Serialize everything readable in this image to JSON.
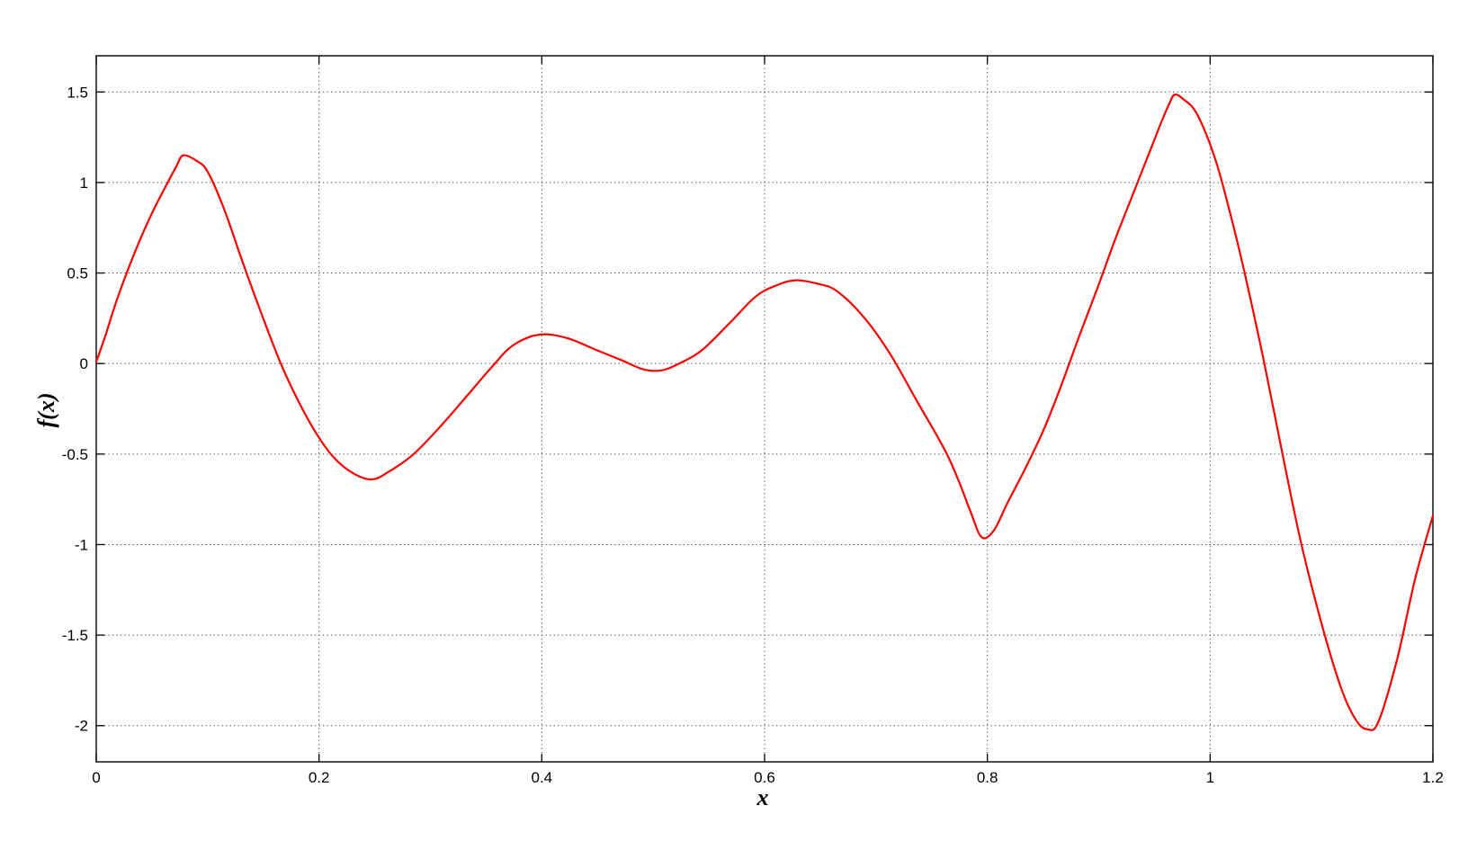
{
  "figure": {
    "background": "#ffffff"
  },
  "chart_data": {
    "type": "line",
    "title": "",
    "xlabel": "x",
    "ylabel": "f(x)",
    "xlim": [
      0,
      1.2
    ],
    "ylim": [
      -2.2,
      1.7
    ],
    "grid": "dotted",
    "grid_color": "#444444",
    "axis_color": "#111111",
    "x_ticks": [
      {
        "value": 0.0,
        "label": "0"
      },
      {
        "value": 0.2,
        "label": "0.2"
      },
      {
        "value": 0.4,
        "label": "0.4"
      },
      {
        "value": 0.6,
        "label": "0.6"
      },
      {
        "value": 0.8,
        "label": "0.8"
      },
      {
        "value": 1.0,
        "label": "1"
      },
      {
        "value": 1.2,
        "label": "1.2"
      }
    ],
    "y_ticks": [
      {
        "value": 1.5,
        "label": "1.5"
      },
      {
        "value": 1.0,
        "label": "1"
      },
      {
        "value": 0.5,
        "label": "0.5"
      },
      {
        "value": 0.0,
        "label": "0"
      },
      {
        "value": -0.5,
        "label": "-0.5"
      },
      {
        "value": -1.0,
        "label": "-1"
      },
      {
        "value": -1.5,
        "label": "-1.5"
      },
      {
        "value": -2.0,
        "label": "-2"
      }
    ],
    "series": [
      {
        "name": "f(x)",
        "color": "#ff0000",
        "line_width": 2.2,
        "points": [
          [
            0.0,
            0.01
          ],
          [
            0.008,
            0.15
          ],
          [
            0.019,
            0.36
          ],
          [
            0.035,
            0.62
          ],
          [
            0.05,
            0.83
          ],
          [
            0.065,
            1.01
          ],
          [
            0.072,
            1.09
          ],
          [
            0.078,
            1.15
          ],
          [
            0.09,
            1.12
          ],
          [
            0.1,
            1.06
          ],
          [
            0.115,
            0.85
          ],
          [
            0.132,
            0.55
          ],
          [
            0.148,
            0.28
          ],
          [
            0.165,
            0.01
          ],
          [
            0.18,
            -0.19
          ],
          [
            0.196,
            -0.37
          ],
          [
            0.212,
            -0.51
          ],
          [
            0.229,
            -0.6
          ],
          [
            0.247,
            -0.64
          ],
          [
            0.262,
            -0.6
          ],
          [
            0.285,
            -0.5
          ],
          [
            0.31,
            -0.34
          ],
          [
            0.334,
            -0.17
          ],
          [
            0.355,
            -0.02
          ],
          [
            0.374,
            0.1
          ],
          [
            0.398,
            0.16
          ],
          [
            0.423,
            0.14
          ],
          [
            0.447,
            0.08
          ],
          [
            0.471,
            0.02
          ],
          [
            0.49,
            -0.03
          ],
          [
            0.505,
            -0.04
          ],
          [
            0.52,
            -0.01
          ],
          [
            0.543,
            0.07
          ],
          [
            0.568,
            0.22
          ],
          [
            0.592,
            0.37
          ],
          [
            0.61,
            0.43
          ],
          [
            0.628,
            0.46
          ],
          [
            0.648,
            0.44
          ],
          [
            0.665,
            0.4
          ],
          [
            0.69,
            0.25
          ],
          [
            0.713,
            0.05
          ],
          [
            0.737,
            -0.21
          ],
          [
            0.762,
            -0.48
          ],
          [
            0.775,
            -0.66
          ],
          [
            0.785,
            -0.82
          ],
          [
            0.795,
            -0.96
          ],
          [
            0.806,
            -0.92
          ],
          [
            0.818,
            -0.77
          ],
          [
            0.834,
            -0.58
          ],
          [
            0.851,
            -0.36
          ],
          [
            0.867,
            -0.11
          ],
          [
            0.883,
            0.16
          ],
          [
            0.899,
            0.42
          ],
          [
            0.915,
            0.69
          ],
          [
            0.931,
            0.94
          ],
          [
            0.947,
            1.19
          ],
          [
            0.956,
            1.33
          ],
          [
            0.963,
            1.43
          ],
          [
            0.968,
            1.485
          ],
          [
            0.976,
            1.46
          ],
          [
            0.988,
            1.38
          ],
          [
            1.004,
            1.14
          ],
          [
            1.018,
            0.83
          ],
          [
            1.031,
            0.5
          ],
          [
            1.048,
            0.02
          ],
          [
            1.065,
            -0.5
          ],
          [
            1.082,
            -1.0
          ],
          [
            1.102,
            -1.48
          ],
          [
            1.118,
            -1.8
          ],
          [
            1.131,
            -1.97
          ],
          [
            1.141,
            -2.02
          ],
          [
            1.151,
            -1.98
          ],
          [
            1.168,
            -1.63
          ],
          [
            1.184,
            -1.19
          ],
          [
            1.2,
            -0.84
          ]
        ]
      }
    ]
  }
}
